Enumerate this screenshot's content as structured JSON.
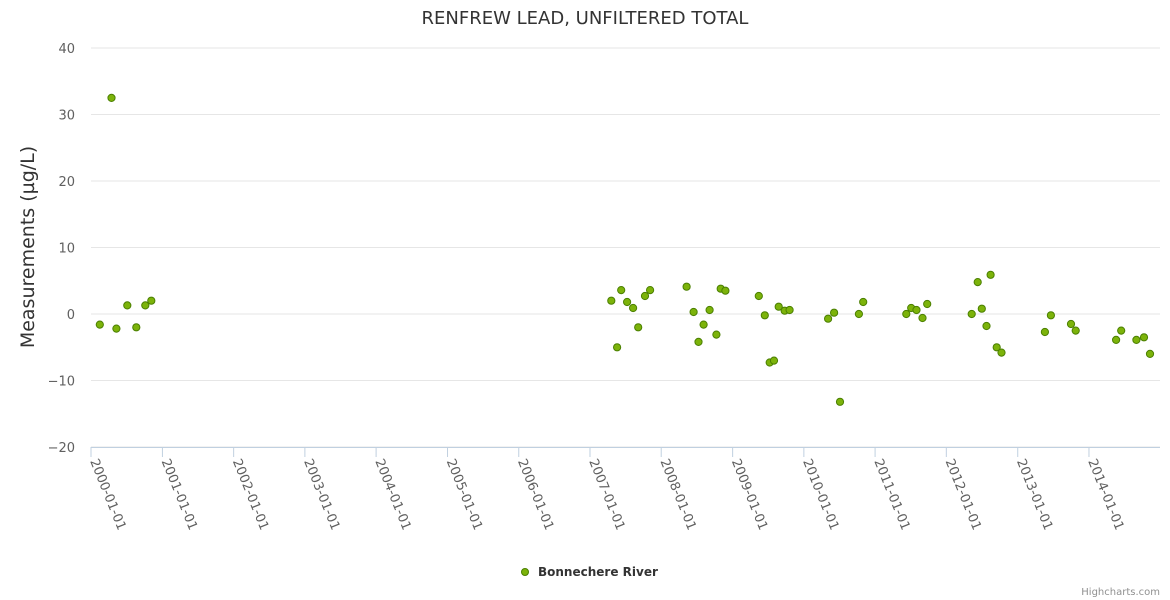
{
  "chart_data": {
    "type": "scatter",
    "title": "RENFREW LEAD, UNFILTERED TOTAL",
    "xlabel": "",
    "ylabel": "Measurements (µg/L)",
    "ylim": [
      -20,
      40
    ],
    "yticks": [
      -20,
      -10,
      0,
      10,
      20,
      30,
      40
    ],
    "xlim": [
      "2000-01-01",
      "2014-12-31"
    ],
    "xticks": [
      "2000-01-01",
      "2001-01-01",
      "2002-01-01",
      "2003-01-01",
      "2004-01-01",
      "2005-01-01",
      "2006-01-01",
      "2007-01-01",
      "2008-01-01",
      "2009-01-01",
      "2010-01-01",
      "2011-01-01",
      "2012-01-01",
      "2013-01-01",
      "2014-01-01"
    ],
    "grid": true,
    "legend_position": "bottom-center",
    "marker_color": "#7cb30a",
    "marker_stroke": "#4a7f00",
    "series": [
      {
        "name": "Bonnechere River",
        "points": [
          {
            "x": "2000-02-15",
            "y": -1.6
          },
          {
            "x": "2000-04-15",
            "y": 32.5
          },
          {
            "x": "2000-05-10",
            "y": -2.2
          },
          {
            "x": "2000-07-05",
            "y": 1.3
          },
          {
            "x": "2000-08-20",
            "y": -2.0
          },
          {
            "x": "2000-10-05",
            "y": 1.3
          },
          {
            "x": "2000-11-05",
            "y": 2.0
          },
          {
            "x": "2007-04-20",
            "y": 2.0
          },
          {
            "x": "2007-05-20",
            "y": -5.0
          },
          {
            "x": "2007-06-10",
            "y": 3.6
          },
          {
            "x": "2007-07-10",
            "y": 1.8
          },
          {
            "x": "2007-08-10",
            "y": 0.9
          },
          {
            "x": "2007-09-05",
            "y": -2.0
          },
          {
            "x": "2007-10-10",
            "y": 2.7
          },
          {
            "x": "2007-11-05",
            "y": 3.6
          },
          {
            "x": "2008-05-10",
            "y": 4.1
          },
          {
            "x": "2008-06-15",
            "y": 0.3
          },
          {
            "x": "2008-07-10",
            "y": -4.2
          },
          {
            "x": "2008-08-05",
            "y": -1.6
          },
          {
            "x": "2008-09-05",
            "y": 0.6
          },
          {
            "x": "2008-10-10",
            "y": -3.1
          },
          {
            "x": "2008-11-01",
            "y": 3.8
          },
          {
            "x": "2008-11-25",
            "y": 3.5
          },
          {
            "x": "2009-05-15",
            "y": 2.7
          },
          {
            "x": "2009-06-15",
            "y": -0.2
          },
          {
            "x": "2009-07-10",
            "y": -7.3
          },
          {
            "x": "2009-08-01",
            "y": -7.0
          },
          {
            "x": "2009-08-25",
            "y": 1.1
          },
          {
            "x": "2009-09-25",
            "y": 0.5
          },
          {
            "x": "2009-10-20",
            "y": 0.6
          },
          {
            "x": "2010-05-05",
            "y": -0.7
          },
          {
            "x": "2010-06-05",
            "y": 0.2
          },
          {
            "x": "2010-07-05",
            "y": -13.2
          },
          {
            "x": "2010-10-10",
            "y": 0.0
          },
          {
            "x": "2010-11-01",
            "y": 1.8
          },
          {
            "x": "2011-06-10",
            "y": 0.0
          },
          {
            "x": "2011-07-05",
            "y": 0.9
          },
          {
            "x": "2011-08-01",
            "y": 0.6
          },
          {
            "x": "2011-09-01",
            "y": -0.6
          },
          {
            "x": "2011-09-25",
            "y": 1.5
          },
          {
            "x": "2012-05-10",
            "y": 0.0
          },
          {
            "x": "2012-06-10",
            "y": 4.8
          },
          {
            "x": "2012-07-01",
            "y": 0.8
          },
          {
            "x": "2012-07-25",
            "y": -1.8
          },
          {
            "x": "2012-08-15",
            "y": 5.9
          },
          {
            "x": "2012-09-15",
            "y": -5.0
          },
          {
            "x": "2012-10-10",
            "y": -5.8
          },
          {
            "x": "2013-05-20",
            "y": -2.7
          },
          {
            "x": "2013-06-20",
            "y": -0.2
          },
          {
            "x": "2013-10-01",
            "y": -1.5
          },
          {
            "x": "2013-10-25",
            "y": -2.5
          },
          {
            "x": "2014-05-20",
            "y": -3.9
          },
          {
            "x": "2014-06-15",
            "y": -2.5
          },
          {
            "x": "2014-09-01",
            "y": -3.9
          },
          {
            "x": "2014-10-10",
            "y": -3.5
          },
          {
            "x": "2014-11-10",
            "y": -6.0
          }
        ]
      }
    ]
  },
  "credits": "Highcharts.com"
}
